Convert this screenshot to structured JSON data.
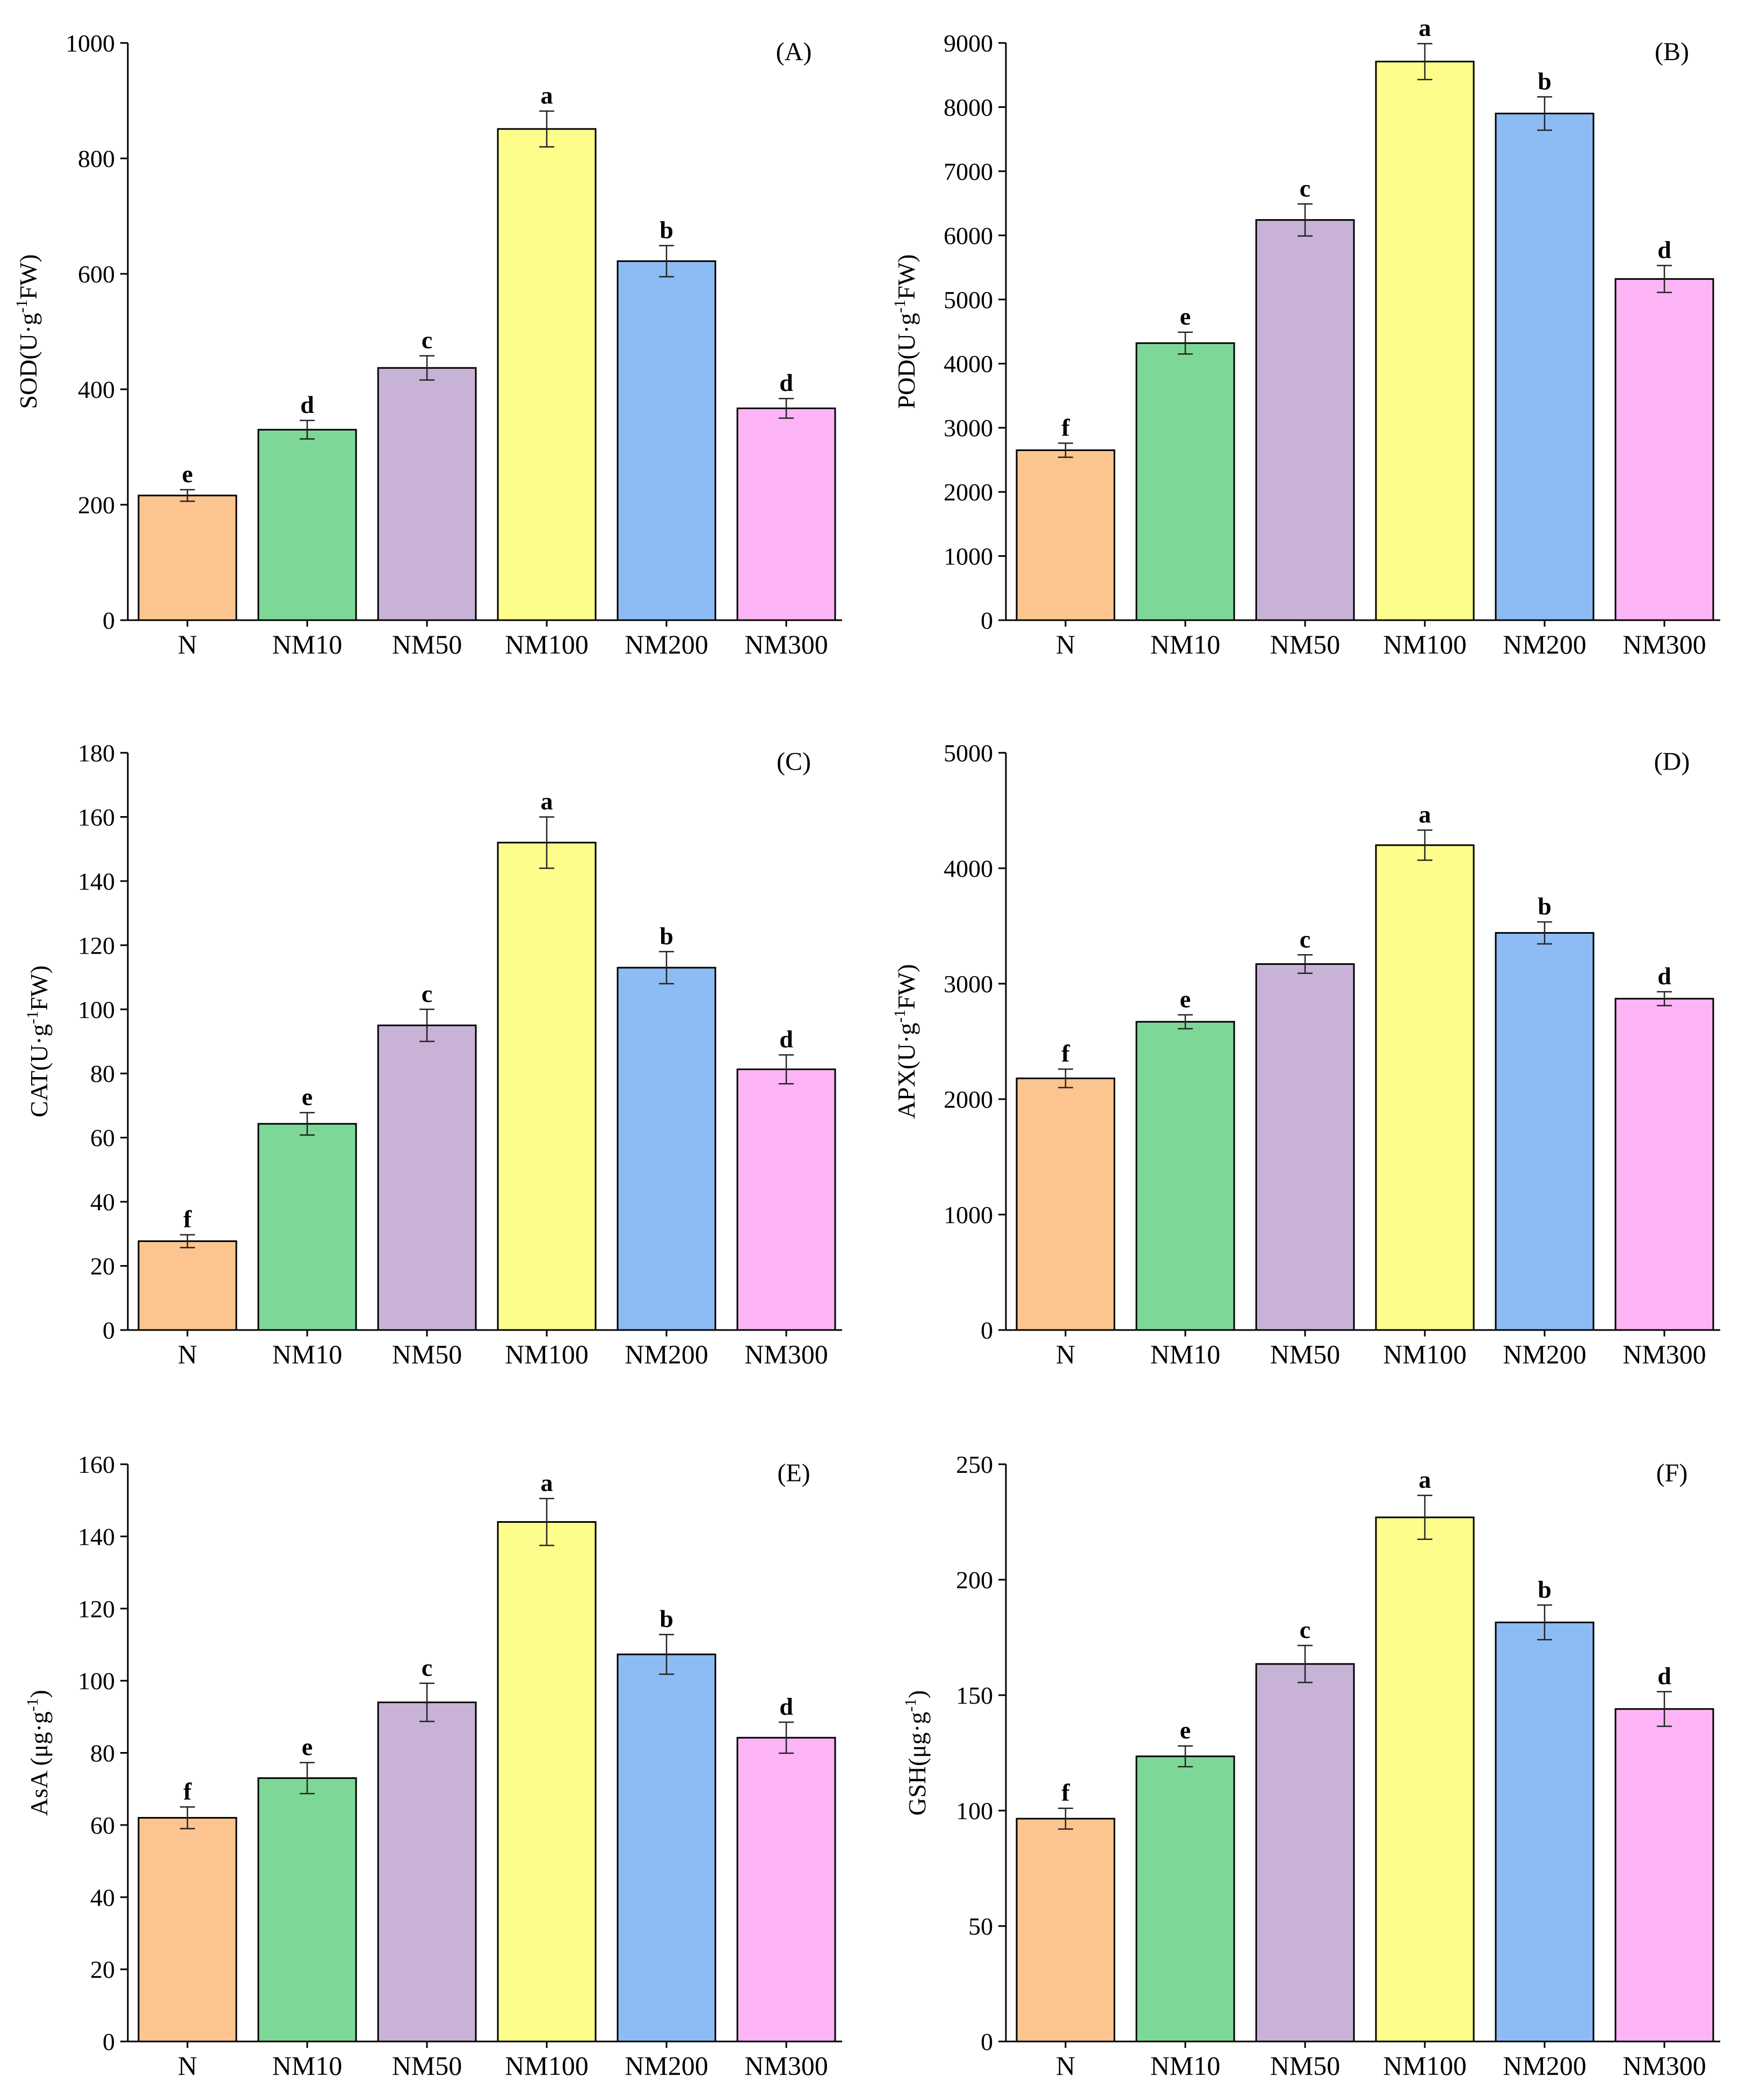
{
  "chart_data": [
    {
      "type": "bar",
      "panel_label": "(A)",
      "ylabel": {
        "pre": "SOD(U·g",
        "sup": "-1",
        "post": "FW)"
      },
      "categories": [
        "N",
        "NM10",
        "NM50",
        "NM100",
        "NM200",
        "NM300"
      ],
      "values": [
        216,
        330,
        437,
        851,
        622,
        367
      ],
      "errors": [
        10,
        16,
        21,
        31,
        27,
        17
      ],
      "sig_letters": [
        "e",
        "d",
        "c",
        "a",
        "b",
        "d"
      ],
      "ylim": [
        0,
        1000
      ],
      "yticks": [
        0,
        200,
        400,
        600,
        800,
        1000
      ],
      "colors": [
        "#fcc48f",
        "#7dd897",
        "#c8b2d6",
        "#fdfd8c",
        "#8dbbf4",
        "#fdb4f6"
      ]
    },
    {
      "type": "bar",
      "panel_label": "(B)",
      "ylabel": {
        "pre": "POD(U·g",
        "sup": "-1",
        "post": "FW)"
      },
      "categories": [
        "N",
        "NM10",
        "NM50",
        "NM100",
        "NM200",
        "NM300"
      ],
      "values": [
        2650,
        4320,
        6240,
        8710,
        7900,
        5320
      ],
      "errors": [
        110,
        170,
        250,
        280,
        260,
        210
      ],
      "sig_letters": [
        "f",
        "e",
        "c",
        "a",
        "b",
        "d"
      ],
      "ylim": [
        0,
        9000
      ],
      "yticks": [
        0,
        1000,
        2000,
        3000,
        4000,
        5000,
        6000,
        7000,
        8000,
        9000
      ],
      "colors": [
        "#fcc48f",
        "#7dd897",
        "#c8b2d6",
        "#fdfd8c",
        "#8dbbf4",
        "#fdb4f6"
      ]
    },
    {
      "type": "bar",
      "panel_label": "(C)",
      "ylabel": {
        "pre": "CAT(U·g",
        "sup": "-1",
        "post": "FW)"
      },
      "categories": [
        "N",
        "NM10",
        "NM50",
        "NM100",
        "NM200",
        "NM300"
      ],
      "values": [
        27.7,
        64.3,
        95,
        152,
        113,
        81.3
      ],
      "errors": [
        2,
        3.5,
        5,
        8,
        5,
        4.5
      ],
      "sig_letters": [
        "f",
        "e",
        "c",
        "a",
        "b",
        "d"
      ],
      "ylim": [
        0,
        180
      ],
      "yticks": [
        0,
        20,
        40,
        60,
        80,
        100,
        120,
        140,
        160,
        180
      ],
      "colors": [
        "#fcc48f",
        "#7dd897",
        "#c8b2d6",
        "#fdfd8c",
        "#8dbbf4",
        "#fdb4f6"
      ]
    },
    {
      "type": "bar",
      "panel_label": "(D)",
      "ylabel": {
        "pre": "APX(U·g",
        "sup": "-1",
        "post": "FW)"
      },
      "categories": [
        "N",
        "NM10",
        "NM50",
        "NM100",
        "NM200",
        "NM300"
      ],
      "values": [
        2180,
        2670,
        3170,
        4200,
        3440,
        2870
      ],
      "errors": [
        80,
        60,
        80,
        130,
        95,
        60
      ],
      "sig_letters": [
        "f",
        "e",
        "c",
        "a",
        "b",
        "d"
      ],
      "ylim": [
        0,
        5000
      ],
      "yticks": [
        0,
        1000,
        2000,
        3000,
        4000,
        5000
      ],
      "colors": [
        "#fcc48f",
        "#7dd897",
        "#c8b2d6",
        "#fdfd8c",
        "#8dbbf4",
        "#fdb4f6"
      ]
    },
    {
      "type": "bar",
      "panel_label": "(E)",
      "ylabel": {
        "pre": "AsA (μg·g",
        "sup": "-1",
        "post": ")"
      },
      "categories": [
        "N",
        "NM10",
        "NM50",
        "NM100",
        "NM200",
        "NM300"
      ],
      "values": [
        62,
        73,
        94,
        144,
        107.3,
        84.2
      ],
      "errors": [
        3,
        4.3,
        5.3,
        6.5,
        5.5,
        4.3
      ],
      "sig_letters": [
        "f",
        "e",
        "c",
        "a",
        "b",
        "d"
      ],
      "ylim": [
        0,
        160
      ],
      "yticks": [
        0,
        20,
        40,
        60,
        80,
        100,
        120,
        140,
        160
      ],
      "colors": [
        "#fcc48f",
        "#7dd897",
        "#c8b2d6",
        "#fdfd8c",
        "#8dbbf4",
        "#fdb4f6"
      ]
    },
    {
      "type": "bar",
      "panel_label": "(F)",
      "ylabel": {
        "pre": "GSH(μg·g",
        "sup": "-1",
        "post": ")"
      },
      "categories": [
        "N",
        "NM10",
        "NM50",
        "NM100",
        "NM200",
        "NM300"
      ],
      "values": [
        96.5,
        123.5,
        163.5,
        227,
        181.5,
        144
      ],
      "errors": [
        4.5,
        4.5,
        8,
        9.5,
        7.5,
        7.5
      ],
      "sig_letters": [
        "f",
        "e",
        "c",
        "a",
        "b",
        "d"
      ],
      "ylim": [
        0,
        250
      ],
      "yticks": [
        0,
        50,
        100,
        150,
        200,
        250
      ],
      "colors": [
        "#fcc48f",
        "#7dd897",
        "#c8b2d6",
        "#fdfd8c",
        "#8dbbf4",
        "#fdb4f6"
      ]
    }
  ]
}
